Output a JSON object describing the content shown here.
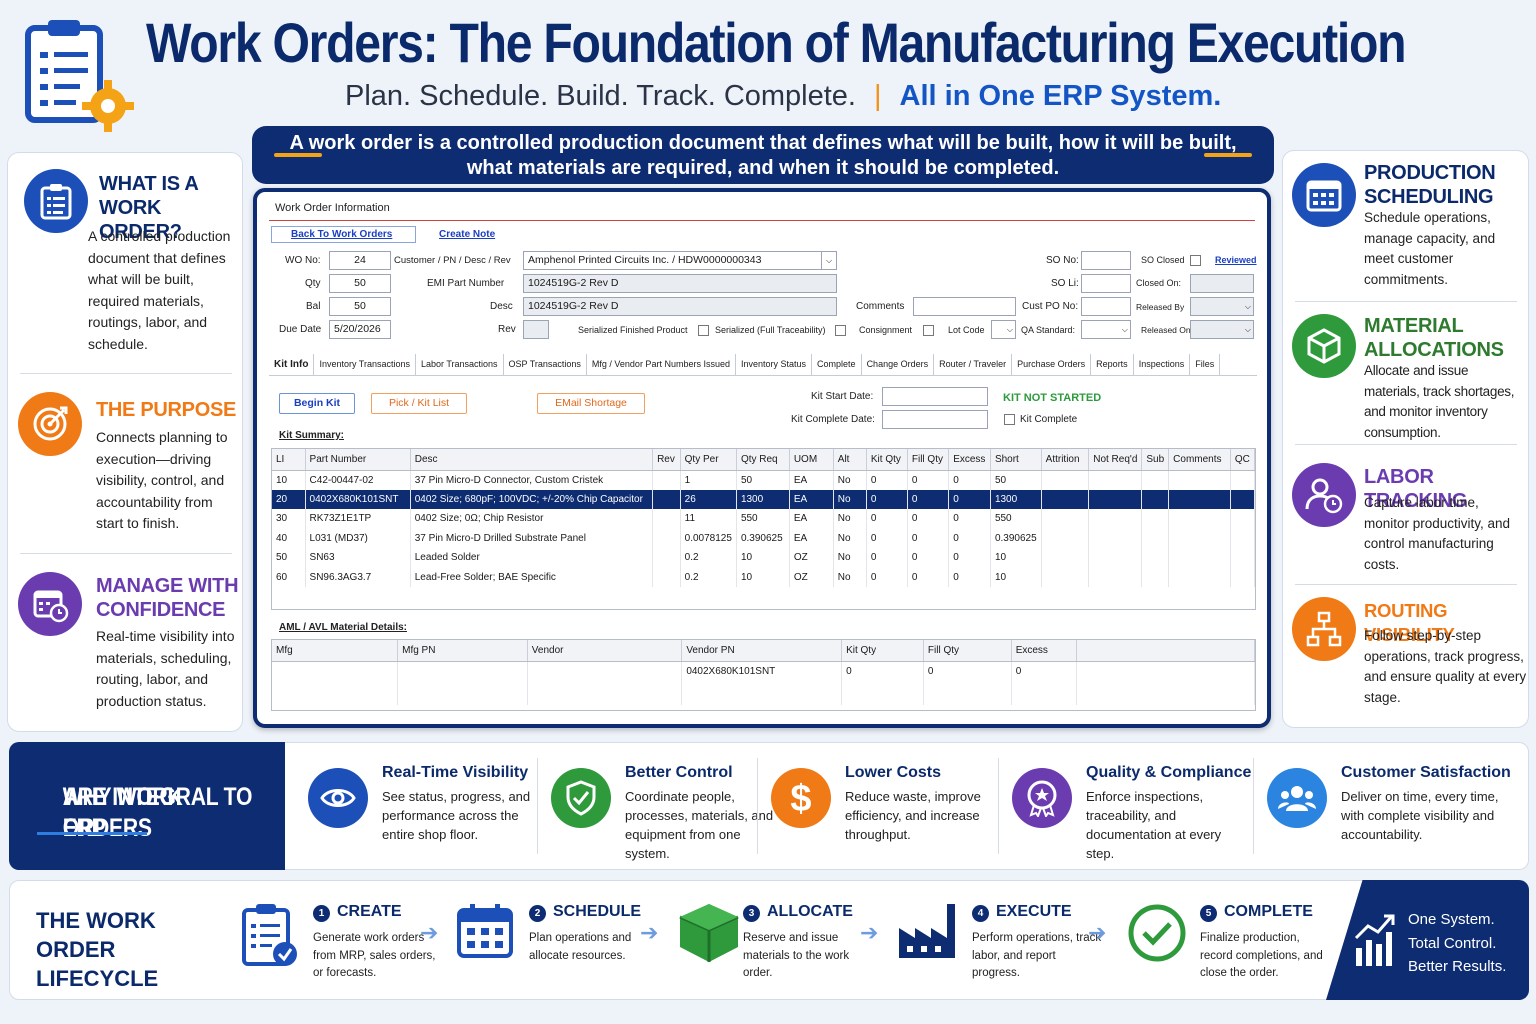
{
  "header": {
    "title": "Work Orders: The Foundation of Manufacturing Execution",
    "tagline": "Plan. Schedule. Build. Track. Complete.",
    "separator": "|",
    "tagline_accent": "All in One ERP System."
  },
  "banner": {
    "line1": "A work order is a controlled production document that defines what will be built, how it will be built,",
    "line2": "what materials are required, and when it should be completed."
  },
  "left_sections": [
    {
      "title1": "WHAT IS A",
      "title2": "WORK ORDER?",
      "text": "A controlled production document that defines what will be built, required materials, routings, labor, and schedule.",
      "icon": "clipboard-icon",
      "color": "#1c4fb8"
    },
    {
      "title1": "THE PURPOSE",
      "title2": "",
      "text": "Connects planning to execution—driving visibility, control, and accountability from start to finish.",
      "icon": "target-icon",
      "color": "#f07a16"
    },
    {
      "title1": "MANAGE WITH",
      "title2": "CONFIDENCE",
      "text": "Real-time visibility into materials, scheduling, routing, labor, and production status.",
      "icon": "calendar-clock-icon",
      "color": "#6a3cb0"
    }
  ],
  "right_sections": [
    {
      "title1": "PRODUCTION",
      "title2": "SCHEDULING",
      "text": "Schedule operations, manage capacity, and meet customer commitments.",
      "icon": "calendar-icon",
      "color": "#1c4fb8"
    },
    {
      "title1": "MATERIAL",
      "title2": "ALLOCATIONS",
      "text": "Allocate and issue materials, track shortages, and monitor inventory consumption.",
      "icon": "box-icon",
      "color": "#2e9a3c"
    },
    {
      "title1": "LABOR TRACKING",
      "title2": "",
      "text": "Capture labor time, monitor productivity, and control manufacturing costs.",
      "icon": "user-clock-icon",
      "color": "#6a3cb0"
    },
    {
      "title1": "ROUTING VISIBILITY",
      "title2": "",
      "text": "Follow step-by-step operations, track progress, and ensure quality at every stage.",
      "icon": "hierarchy-icon",
      "color": "#f07a16"
    }
  ],
  "form": {
    "header": "Work Order Information",
    "back_link": "Back To Work Orders",
    "create_note": "Create Note",
    "wo_no_label": "WO No:",
    "wo_no": "24",
    "qty_label": "Qty",
    "qty": "50",
    "bal_label": "Bal",
    "bal": "50",
    "due_label": "Due Date",
    "due": "5/20/2026",
    "customer_label": "Customer / PN / Desc / Rev",
    "customer": "Amphenol Printed Circuits Inc. / HDW0000000343",
    "emi_label": "EMI Part Number",
    "emi": "1024519G-2 Rev D",
    "desc_label": "Desc",
    "desc": "1024519G-2 Rev D",
    "rev_label": "Rev",
    "serialized_fp": "Serialized Finished Product",
    "serialized_full": "Serialized (Full Traceability)",
    "consignment": "Consignment",
    "lot_code": "Lot Code",
    "comments_label": "Comments",
    "so_no": "SO No:",
    "so_li": "SO Li:",
    "cust_po": "Cust PO No:",
    "qa_std": "QA Standard:",
    "so_closed": "SO Closed",
    "reviewed": "Reviewed",
    "closed_on": "Closed On:",
    "released_by": "Released By",
    "released_on": "Released On:",
    "tabs": [
      "Kit Info",
      "Inventory Transactions",
      "Labor Transactions",
      "OSP Transactions",
      "Mfg / Vendor Part Numbers Issued",
      "Inventory Status",
      "Complete",
      "Change Orders",
      "Router / Traveler",
      "Purchase Orders",
      "Reports",
      "Inspections",
      "Files"
    ],
    "begin_kit": "Begin Kit",
    "pick_list": "Pick / Kit List",
    "email_shortage": "EMail Shortage",
    "kit_start": "Kit Start Date:",
    "kit_complete_date": "Kit Complete Date:",
    "kit_status": "KIT NOT STARTED",
    "kit_complete": "Kit Complete",
    "kit_summary": "Kit Summary:",
    "aml_title": "AML / AVL Material Details:"
  },
  "kit_table": {
    "columns": [
      "LI",
      "Part Number",
      "Desc",
      "Rev",
      "Qty Per",
      "Qty Req",
      "UOM",
      "Alt",
      "Kit Qty",
      "Fill Qty",
      "Excess",
      "Short",
      "Attrition",
      "Not Req'd",
      "Sub",
      "Comments",
      "QC"
    ],
    "rows": [
      [
        "10",
        "C42-00447-02",
        "37 Pin Micro-D Connector, Custom Cristek",
        "",
        "1",
        "50",
        "EA",
        "No",
        "0",
        "0",
        "0",
        "50",
        "",
        "",
        "",
        "",
        ""
      ],
      [
        "20",
        "0402X680K101SNT",
        "0402 Size; 680pF; 100VDC; +/-20% Chip Capacitor",
        "",
        "26",
        "1300",
        "EA",
        "No",
        "0",
        "0",
        "0",
        "1300",
        "",
        "",
        "",
        "",
        ""
      ],
      [
        "30",
        "RK73Z1E1TP",
        "0402 Size; 0Ω; Chip Resistor",
        "",
        "11",
        "550",
        "EA",
        "No",
        "0",
        "0",
        "0",
        "550",
        "",
        "",
        "",
        "",
        ""
      ],
      [
        "40",
        "L031  (MD37)",
        "37 Pin Micro-D Drilled Substrate Panel",
        "",
        "0.0078125",
        "0.390625",
        "EA",
        "No",
        "0",
        "0",
        "0",
        "0.390625",
        "",
        "",
        "",
        "",
        ""
      ],
      [
        "50",
        "SN63",
        "Leaded Solder",
        "",
        "0.2",
        "10",
        "OZ",
        "No",
        "0",
        "0",
        "0",
        "10",
        "",
        "",
        "",
        "",
        ""
      ],
      [
        "60",
        "SN96.3AG3.7",
        "Lead-Free Solder; BAE Specific",
        "",
        "0.2",
        "10",
        "OZ",
        "No",
        "0",
        "0",
        "0",
        "10",
        "",
        "",
        "",
        "",
        ""
      ]
    ],
    "selected_row": 1
  },
  "aml_table": {
    "columns": [
      "Mfg",
      "Mfg PN",
      "Vendor",
      "Vendor PN",
      "Kit Qty",
      "Fill Qty",
      "Excess",
      ""
    ],
    "rows": [
      [
        "",
        "",
        "",
        "0402X680K101SNT",
        "0",
        "0",
        "0",
        ""
      ]
    ]
  },
  "why": {
    "title1": "WHY WORK ORDERS",
    "title2": "ARE INTEGRAL TO ERP",
    "items": [
      {
        "title": "Real-Time Visibility",
        "text": "See status, progress, and performance across the entire shop floor.",
        "icon": "eye-icon",
        "color": "#1c4fb8"
      },
      {
        "title": "Better Control",
        "text": "Coordinate people, processes, materials, and equipment from one system.",
        "icon": "shield-check-icon",
        "color": "#2e9a3c"
      },
      {
        "title": "Lower Costs",
        "text": "Reduce waste, improve efficiency, and increase throughput.",
        "icon": "dollar-icon",
        "color": "#f07a16"
      },
      {
        "title": "Quality & Compliance",
        "text": "Enforce inspections, traceability, and documentation at every step.",
        "icon": "award-icon",
        "color": "#6a3cb0"
      },
      {
        "title": "Customer Satisfaction",
        "text": "Deliver on time, every time, with complete visibility and accountability.",
        "icon": "users-icon",
        "color": "#2a84e0"
      }
    ]
  },
  "lifecycle": {
    "title1": "THE WORK ORDER",
    "title2": "LIFECYCLE",
    "steps": [
      {
        "num": "1",
        "title": "CREATE",
        "text": "Generate work orders from MRP, sales orders, or forecasts.",
        "icon": "clipboard-check-icon"
      },
      {
        "num": "2",
        "title": "SCHEDULE",
        "text": "Plan operations and allocate resources.",
        "icon": "calendar-icon"
      },
      {
        "num": "3",
        "title": "ALLOCATE",
        "text": "Reserve and issue materials to the work order.",
        "icon": "box-icon"
      },
      {
        "num": "4",
        "title": "EXECUTE",
        "text": "Perform operations, track labor, and report progress.",
        "icon": "factory-icon"
      },
      {
        "num": "5",
        "title": "COMPLETE",
        "text": "Finalize production, record completions, and close the order.",
        "icon": "check-circle-icon"
      }
    ],
    "arrow": "➔",
    "closing": [
      "One System.",
      "Total Control.",
      "Better Results."
    ]
  }
}
